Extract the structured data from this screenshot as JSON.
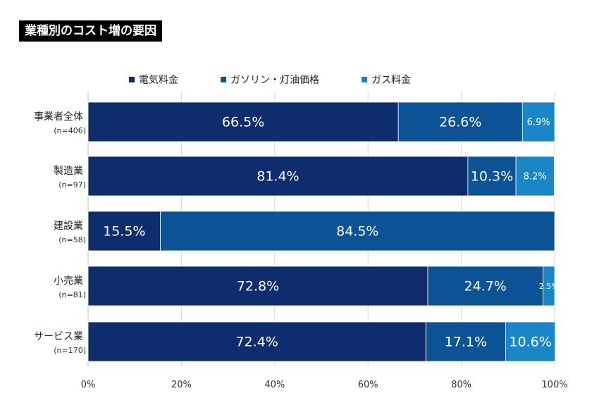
{
  "title": "業種別のコスト増の要因",
  "chart_data": {
    "type": "bar",
    "orientation": "horizontal",
    "stacked": "percent",
    "categories": [
      "事業者全体",
      "製造業",
      "建設業",
      "小売業",
      "サービス業"
    ],
    "sample_sizes": [
      "(n=406)",
      "(n=97)",
      "(n=58)",
      "(n=81)",
      "(n=170)"
    ],
    "series": [
      {
        "name": "電気料金",
        "color": "#0d2d6e",
        "values": [
          66.5,
          81.4,
          15.5,
          72.8,
          72.4
        ],
        "labels": [
          "66.5%",
          "81.4%",
          "15.5%",
          "72.8%",
          "72.4%"
        ]
      },
      {
        "name": "ガソリン・灯油価格",
        "color": "#0b5394",
        "values": [
          26.6,
          10.3,
          84.5,
          24.7,
          17.1
        ],
        "labels": [
          "26.6%",
          "10.3%",
          "84.5%",
          "24.7%",
          "17.1%"
        ]
      },
      {
        "name": "ガス料金",
        "color": "#1a86c8",
        "values": [
          6.9,
          8.2,
          0,
          2.5,
          10.6
        ],
        "labels": [
          "6.9%",
          "8.2%",
          "",
          "2.5%",
          "10.6%"
        ]
      }
    ],
    "xlim": [
      0,
      100
    ],
    "xticks": [
      "0%",
      "20%",
      "40%",
      "60%",
      "80%",
      "100%"
    ],
    "grid": true,
    "legend_position": "top"
  }
}
